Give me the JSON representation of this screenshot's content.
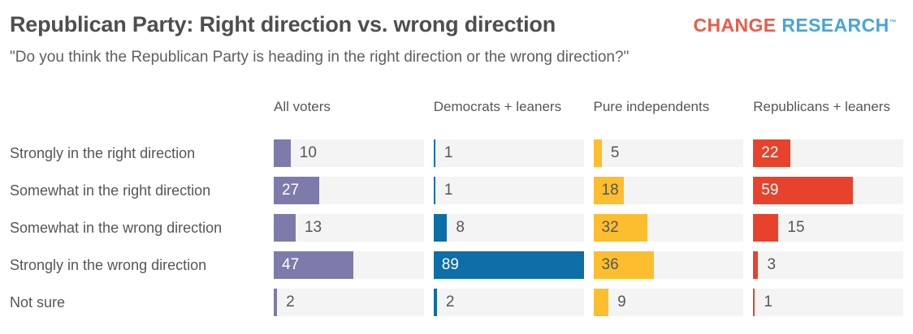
{
  "header": {
    "title": "Republican Party: Right direction vs. wrong direction",
    "subtitle": "\"Do you think the Republican Party is heading in the right direction or the wrong direction?\"",
    "logo": {
      "word1": "CHANGE",
      "word2": "RESEARCH",
      "trademark": "™",
      "word1_color": "#ee5a48",
      "word2_color": "#47a5da"
    }
  },
  "chart_data": {
    "type": "bar",
    "orientation": "horizontal",
    "title": "Republican Party: Right direction vs. wrong direction",
    "categories": [
      "Strongly in the right direction",
      "Somewhat in the right direction",
      "Somewhat in the wrong direction",
      "Strongly in the wrong direction",
      "Not sure"
    ],
    "series": [
      {
        "name": "All voters",
        "color": "#7c7bab",
        "inside_label_color": "#ffffff",
        "values": [
          10,
          27,
          13,
          47,
          2
        ]
      },
      {
        "name": "Democrats + leaners",
        "color": "#0d6ea8",
        "inside_label_color": "#ffffff",
        "values": [
          1,
          1,
          8,
          89,
          2
        ]
      },
      {
        "name": "Pure independents",
        "color": "#fcbe2f",
        "inside_label_color": "#55565a",
        "values": [
          5,
          18,
          32,
          36,
          9
        ]
      },
      {
        "name": "Republicans + leaners",
        "color": "#e8422c",
        "inside_label_color": "#ffffff",
        "values": [
          22,
          59,
          15,
          3,
          1
        ]
      }
    ],
    "scale_max": 89,
    "inside_label_threshold": 18,
    "track_color": "#f4f4f4",
    "outside_label_color": "#55565a",
    "grid": false,
    "legend_position": "column-headers",
    "data_labels": true
  }
}
